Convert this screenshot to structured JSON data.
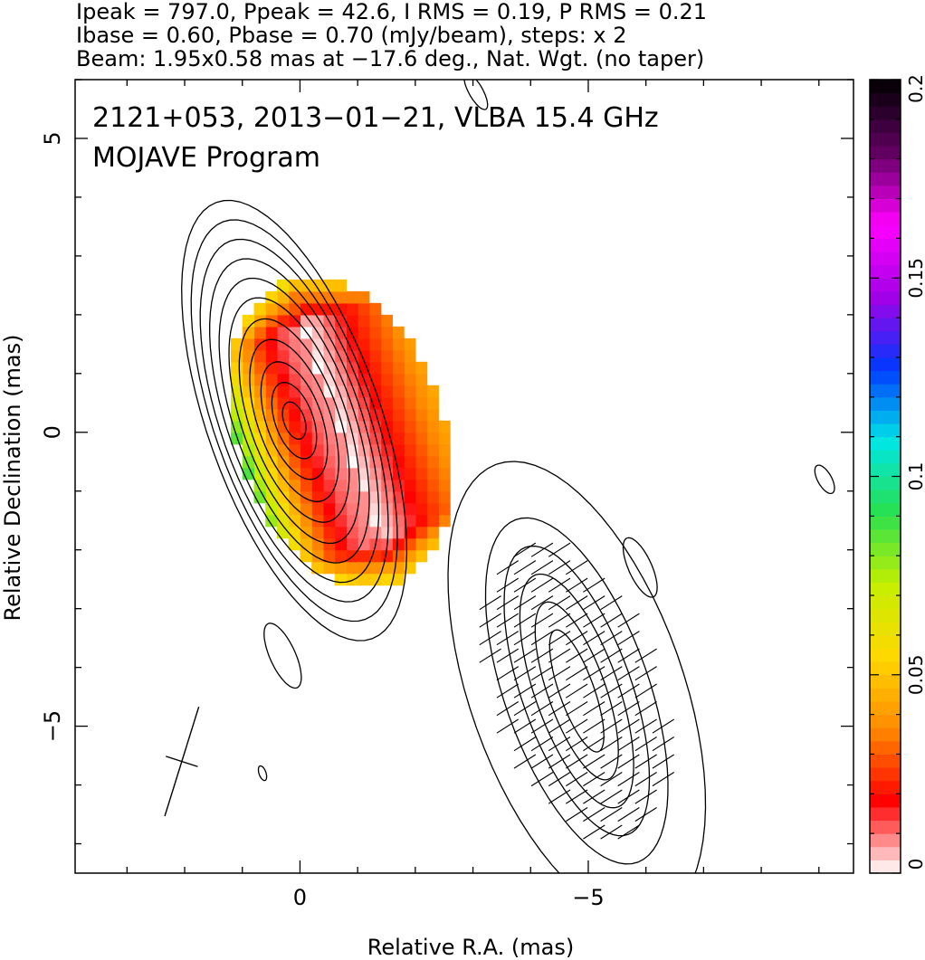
{
  "header": {
    "line1": "Ipeak = 797.0, Ppeak = 42.6, I RMS = 0.19, P RMS = 0.21",
    "line2": "Ibase = 0.60, Pbase = 0.70 (mJy/beam), steps: x 2",
    "line3": "Beam: 1.95x0.58 mas at −17.6 deg., Nat. Wgt. (no taper)"
  },
  "chart_data": {
    "type": "heatmap",
    "title": "2121+053, 2013−01−21, VLBA 15.4 GHz",
    "subtitle": "MOJAVE Program",
    "xlabel": "Relative R.A. (mas)",
    "ylabel": "Relative Declination (mas)",
    "xlim": [
      3.9,
      -9.6
    ],
    "ylim": [
      -7.5,
      6.0
    ],
    "x_reversed": true,
    "x_ticks": [
      {
        "value": 0,
        "label": "0"
      },
      {
        "value": -5,
        "label": "−5"
      }
    ],
    "y_ticks": [
      {
        "value": 5,
        "label": "5"
      },
      {
        "value": 0,
        "label": "0"
      },
      {
        "value": -5,
        "label": "−5"
      }
    ],
    "colorbar": {
      "min": 0,
      "max": 0.2,
      "ticks": [
        {
          "value": 0,
          "label": "0"
        },
        {
          "value": 0.05,
          "label": "0.05"
        },
        {
          "value": 0.1,
          "label": "0.1"
        },
        {
          "value": 0.15,
          "label": "0.15"
        },
        {
          "value": 0.2,
          "label": "0.2"
        }
      ],
      "stops": [
        "#ffffff",
        "#ff0000",
        "#ff8a00",
        "#ffd800",
        "#c6ef00",
        "#28e050",
        "#00e6e6",
        "#0038ff",
        "#a400e6",
        "#ff00ff",
        "#600060",
        "#000000"
      ]
    },
    "contours": {
      "base_mjy_per_beam": 0.6,
      "step_factor": 2,
      "main_component": {
        "center": [
          0.1,
          0.2
        ],
        "pa_deg": -20,
        "levels": [
          {
            "a": 1.5,
            "b": 3.95
          },
          {
            "a": 1.38,
            "b": 3.6
          },
          {
            "a": 1.27,
            "b": 3.25
          },
          {
            "a": 1.15,
            "b": 2.9
          },
          {
            "a": 1.03,
            "b": 2.55
          },
          {
            "a": 0.9,
            "b": 2.2
          },
          {
            "a": 0.77,
            "b": 1.82
          },
          {
            "a": 0.63,
            "b": 1.45
          },
          {
            "a": 0.48,
            "b": 1.05
          },
          {
            "a": 0.33,
            "b": 0.68
          },
          {
            "a": 0.18,
            "b": 0.33
          }
        ]
      },
      "south_component": {
        "center": [
          -4.8,
          -4.4
        ],
        "pa_deg": -20,
        "levels": [
          {
            "a": 1.85,
            "b": 4.1
          },
          {
            "a": 1.25,
            "b": 3.1
          },
          {
            "a": 0.95,
            "b": 2.6
          },
          {
            "a": 0.72,
            "b": 2.1
          },
          {
            "a": 0.5,
            "b": 1.6
          },
          {
            "a": 0.3,
            "b": 1.1
          }
        ]
      },
      "small_islands": [
        {
          "center": [
            0.3,
            -3.8
          ],
          "a": 0.22,
          "b": 0.6,
          "pa_deg": -25
        },
        {
          "center": [
            0.65,
            -5.8
          ],
          "a": 0.06,
          "b": 0.13,
          "pa_deg": -20
        },
        {
          "center": [
            -3.05,
            5.8
          ],
          "a": 0.12,
          "b": 0.35,
          "pa_deg": -30
        },
        {
          "center": [
            -9.1,
            -0.8
          ],
          "a": 0.12,
          "b": 0.27,
          "pa_deg": -30
        },
        {
          "center": [
            -5.9,
            -2.3
          ],
          "a": 0.2,
          "b": 0.55,
          "pa_deg": -25
        }
      ]
    },
    "fractional_polarization_map": {
      "center": [
        -0.5,
        0.0
      ],
      "pa_deg": -20,
      "semi_axes": [
        1.8,
        2.75
      ]
    },
    "evpa_vectors": {
      "region_center": [
        -4.8,
        -4.4
      ],
      "region_semi_axes": [
        1.35,
        2.7
      ],
      "region_pa_deg": -20,
      "vector_pa_deg": -58
    },
    "beam": {
      "center": [
        2.05,
        -5.6
      ],
      "major_mas": 1.95,
      "minor_mas": 0.58,
      "pa_deg": -17.6
    }
  }
}
